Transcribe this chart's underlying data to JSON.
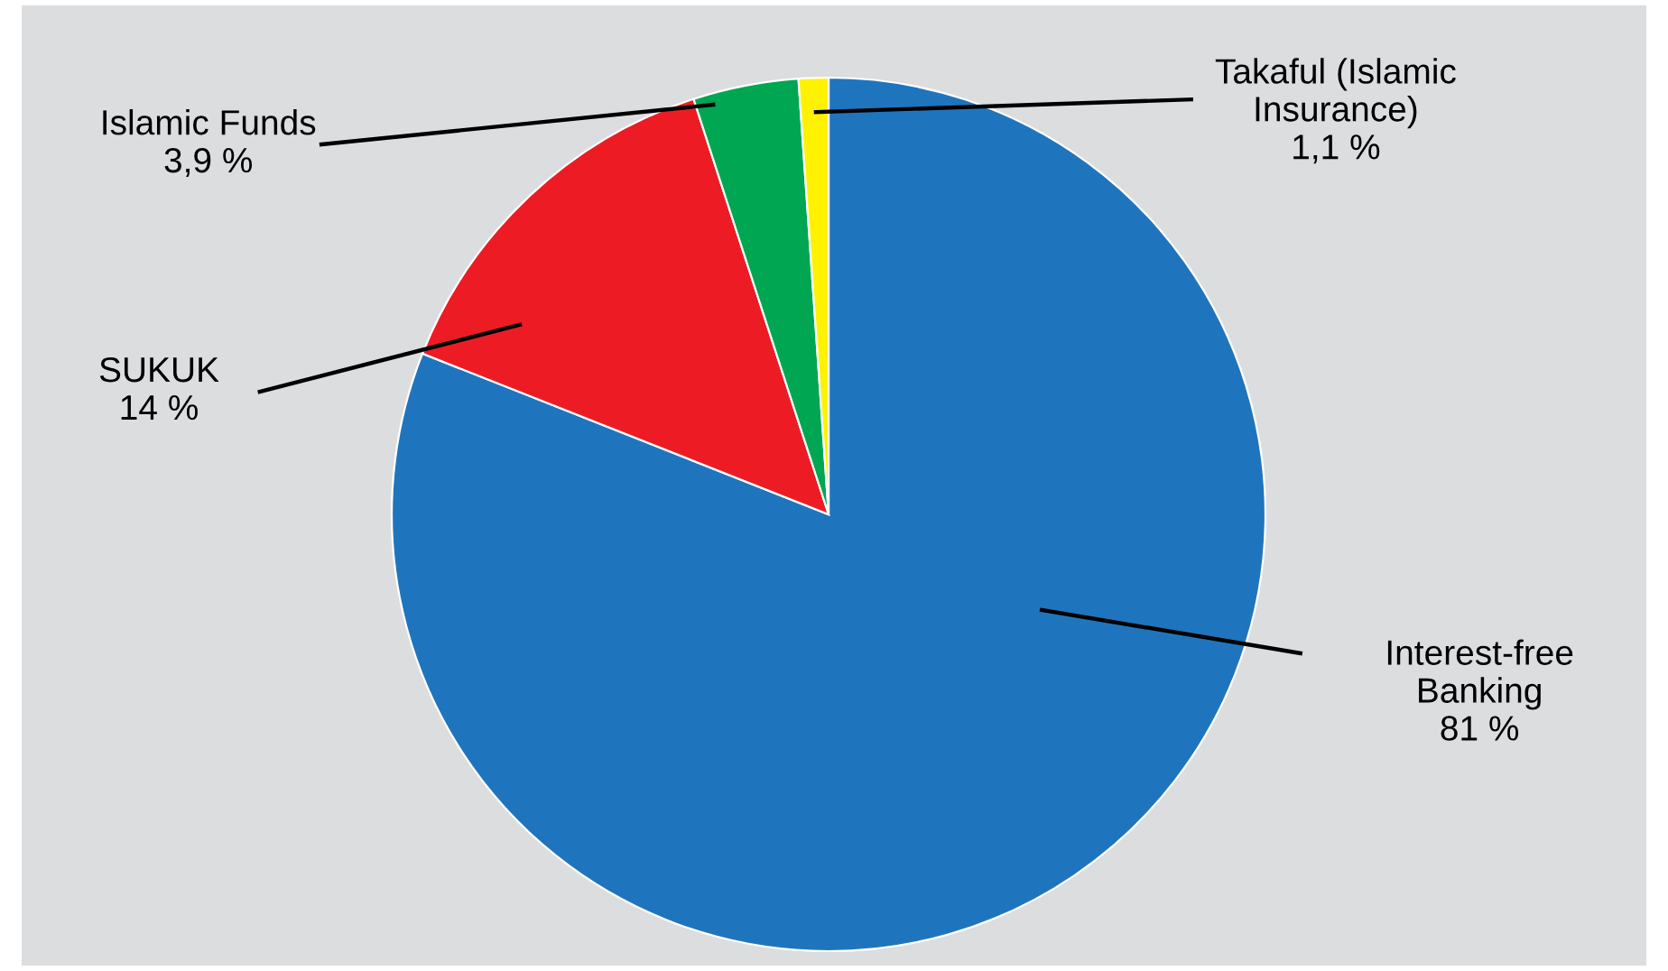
{
  "chart_data": {
    "type": "pie",
    "categories": [
      "Interest-free Banking",
      "SUKUK",
      "Islamic Funds",
      "Takaful (Islamic Insurance)"
    ],
    "values": [
      81,
      14,
      3.9,
      1.1
    ],
    "value_labels": [
      "81 %",
      "14 %",
      "3,9 %",
      "1,1 %"
    ],
    "colors": [
      "#1f75bd",
      "#ed1c24",
      "#00a651",
      "#fff200"
    ]
  }
}
